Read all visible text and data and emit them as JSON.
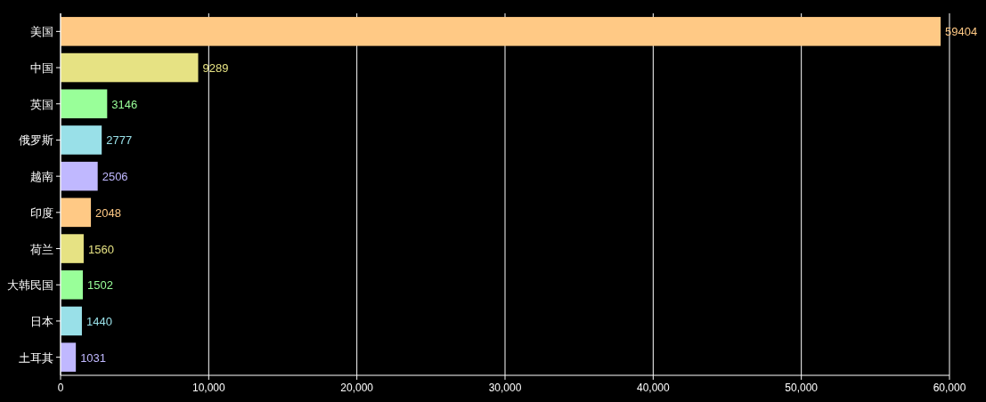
{
  "chart_data": {
    "type": "bar",
    "orientation": "horizontal",
    "categories": [
      "美国",
      "中国",
      "英国",
      "俄罗斯",
      "越南",
      "印度",
      "荷兰",
      "大韩民国",
      "日本",
      "土耳其"
    ],
    "values": [
      59404,
      9289,
      3146,
      2777,
      2506,
      2048,
      1560,
      1502,
      1440,
      1031
    ],
    "colors": [
      "#ffc985",
      "#e6e283",
      "#99ff99",
      "#99e0e8",
      "#c0b8ff",
      "#ffc985",
      "#e6e283",
      "#99ff99",
      "#99e0e8",
      "#c0b8ff"
    ],
    "xlim": [
      0,
      60000
    ],
    "xticks": [
      0,
      {
        "value": 10000,
        "label": "10,000"
      },
      {
        "value": 20000,
        "label": "20,000"
      },
      {
        "value": 30000,
        "label": "30,000"
      },
      {
        "value": 40000,
        "label": "40,000"
      },
      {
        "value": 50000,
        "label": "50,000"
      },
      {
        "value": 60000,
        "label": "60,000"
      }
    ],
    "grid": "x",
    "data_labels": true
  }
}
